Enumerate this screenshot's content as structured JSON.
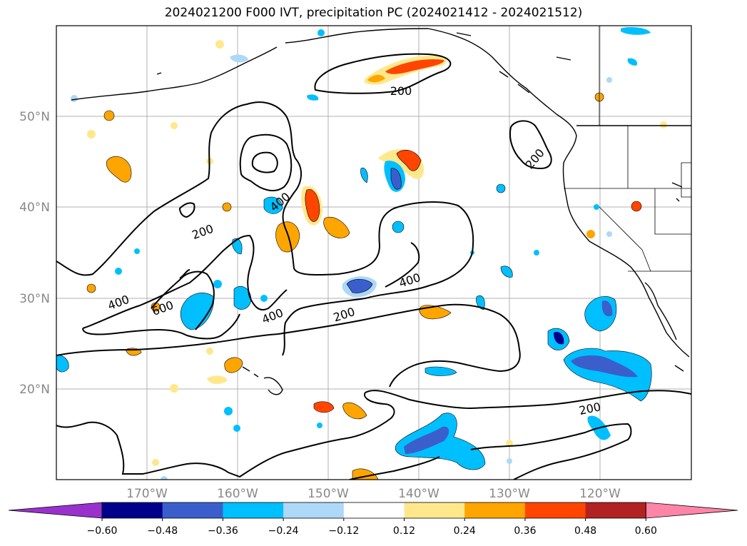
{
  "title": "2024021200 F000 IVT, precipitation PC (2024021412 - 2024021512)",
  "map": {
    "projection": "plate-carree",
    "lon_range": [
      -180,
      -110
    ],
    "lat_range": [
      10,
      60
    ],
    "gridlines": true,
    "lat_ticks": [
      {
        "value": 50,
        "label": "50°N"
      },
      {
        "value": 40,
        "label": "40°N"
      },
      {
        "value": 30,
        "label": "30°N"
      },
      {
        "value": 20,
        "label": "20°N"
      }
    ],
    "lon_ticks": [
      {
        "value": -170,
        "label": "170°W"
      },
      {
        "value": -160,
        "label": "160°W"
      },
      {
        "value": -150,
        "label": "150°W"
      },
      {
        "value": -140,
        "label": "140°W"
      },
      {
        "value": -130,
        "label": "130°W"
      },
      {
        "value": -120,
        "label": "120°W"
      }
    ],
    "contour_labels": [
      "200",
      "400",
      "600",
      "400",
      "200",
      "400",
      "200",
      "200",
      "200",
      "400"
    ]
  },
  "colorbar": {
    "orientation": "horizontal",
    "placement": "bottom",
    "extend": "both",
    "tick_labels": [
      "−0.60",
      "−0.48",
      "−0.36",
      "−0.24",
      "−0.12",
      "0.12",
      "0.24",
      "0.36",
      "0.48",
      "0.60"
    ],
    "colors": [
      "#9932cc",
      "#00008b",
      "#3a5fcd",
      "#00bfff",
      "#add8f7",
      "#ffffff",
      "#ffe88c",
      "#ffa500",
      "#ff4500",
      "#b22222",
      "#ff85a8"
    ]
  }
}
